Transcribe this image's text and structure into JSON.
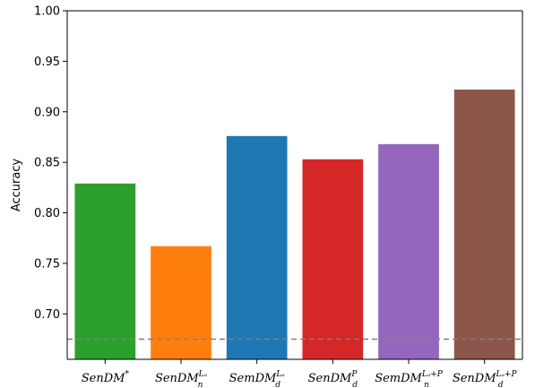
{
  "chart_data": {
    "type": "bar",
    "ylabel": "Accuracy",
    "ylim": [
      0.655,
      1.0
    ],
    "yticks": [
      "0.70",
      "0.75",
      "0.80",
      "0.85",
      "0.90",
      "0.95",
      "1.00"
    ],
    "categories": [
      {
        "base": "SenDM",
        "sup": "*",
        "sub": ""
      },
      {
        "base": "SenDM",
        "sup": "Lₐ",
        "sub": "n"
      },
      {
        "base": "SemDM",
        "sup": "Lₐ",
        "sub": "d"
      },
      {
        "base": "SenDM",
        "sup": "P",
        "sub": "d"
      },
      {
        "base": "SemDM",
        "sup": "Lₐ+P",
        "sub": "n"
      },
      {
        "base": "SenDM",
        "sup": "Lₐ+P",
        "sub": "d"
      }
    ],
    "values": [
      0.829,
      0.767,
      0.876,
      0.853,
      0.868,
      0.922
    ],
    "colors": [
      "#2ca02c",
      "#ff7f0e",
      "#1f77b4",
      "#d62728",
      "#9467bd",
      "#8c564b"
    ],
    "baseline": 0.675,
    "baseline_color": "#808080",
    "grid": false,
    "legend": "none"
  }
}
